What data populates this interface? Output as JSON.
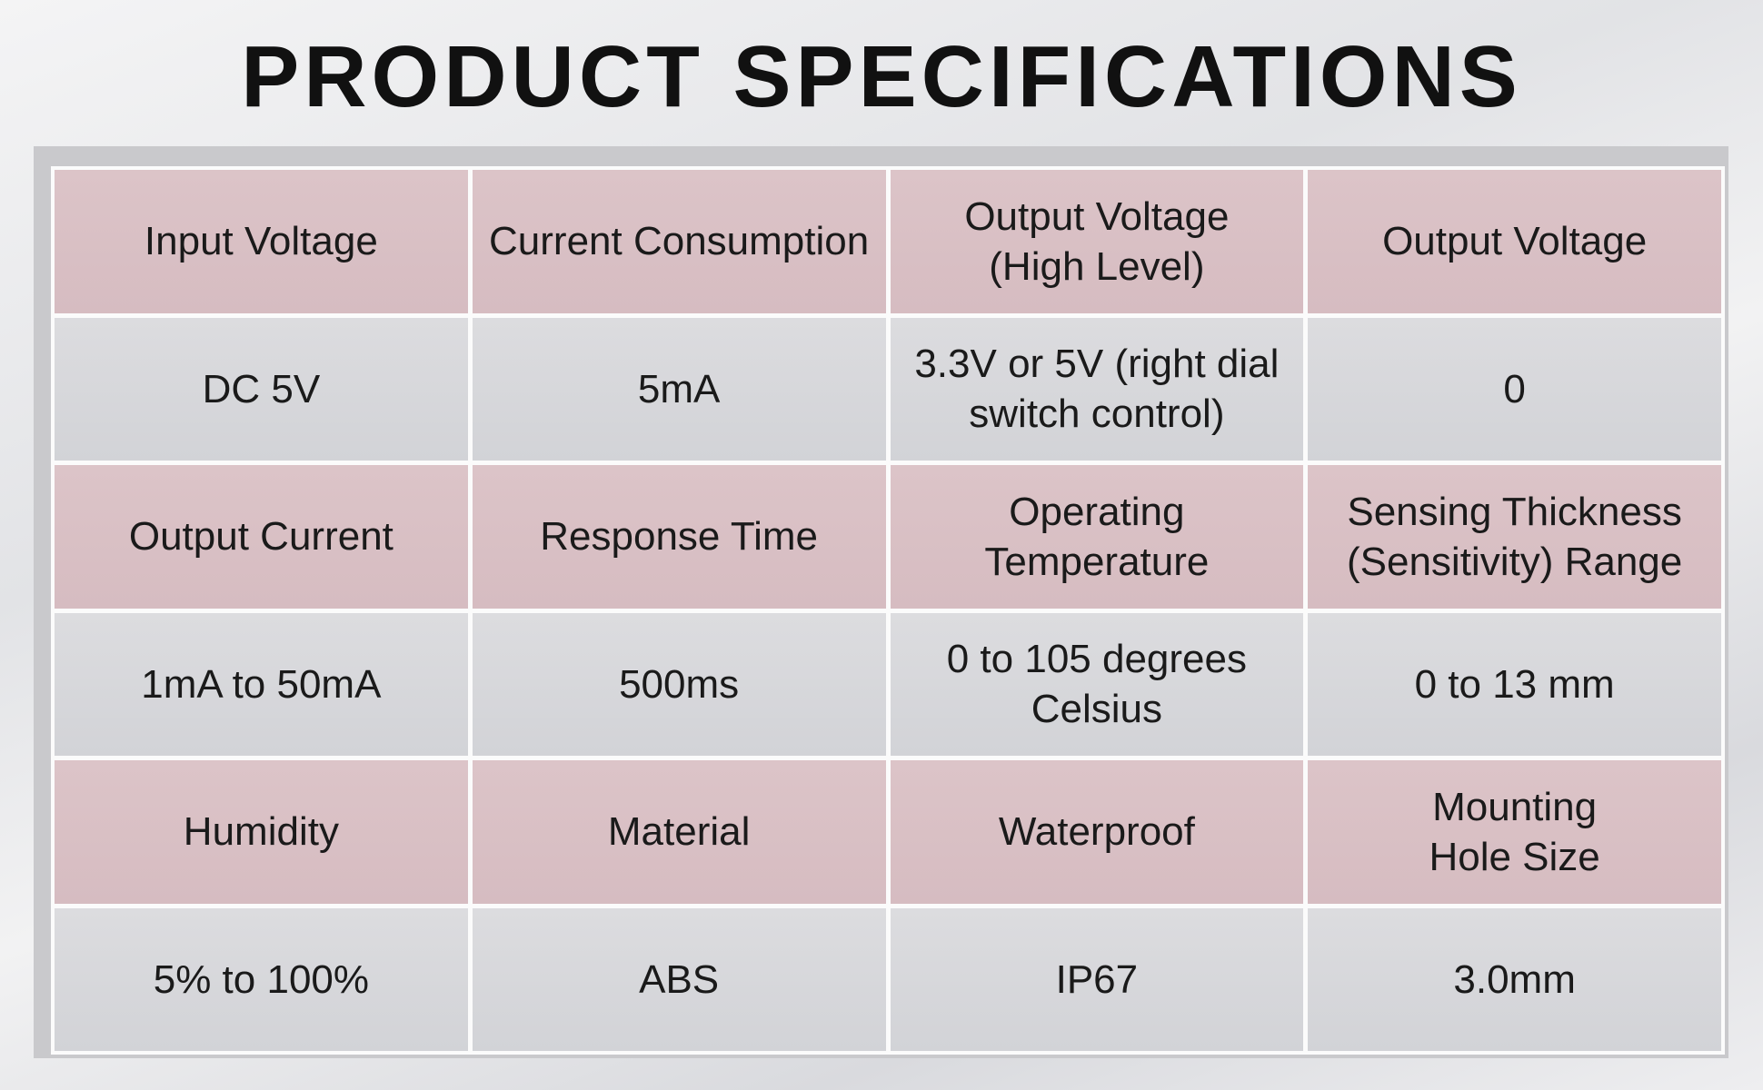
{
  "header": {
    "title": "PRODUCT SPECIFICATIONS"
  },
  "table": {
    "rows": [
      [
        "Input Voltage",
        "Current Consumption",
        "Output Voltage\n(High Level)",
        "Output Voltage"
      ],
      [
        "DC 5V",
        "5mA",
        "3.3V or 5V (right dial\nswitch control)",
        "0"
      ],
      [
        "Output Current",
        "Response Time",
        "Operating\nTemperature",
        "Sensing Thickness\n(Sensitivity) Range"
      ],
      [
        "1mA to 50mA",
        "500ms",
        "0 to 105 degrees\nCelsius",
        "0 to 13 mm"
      ],
      [
        "Humidity",
        "Material",
        "Waterproof",
        "Mounting\nHole Size"
      ],
      [
        "5% to 100%",
        "ABS",
        "IP67",
        "3.0mm"
      ]
    ]
  }
}
